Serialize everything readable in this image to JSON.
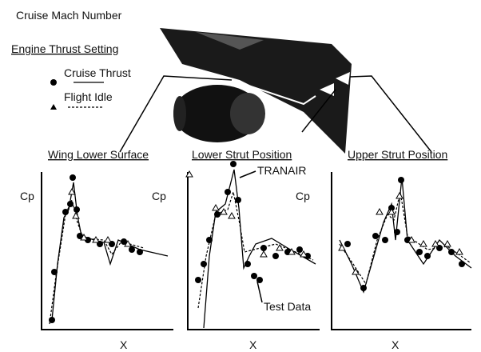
{
  "header": {
    "title": "Cruise Mach Number"
  },
  "legend": {
    "title": "Engine Thrust Setting",
    "items": [
      "Cruise Thrust",
      "Flight Idle"
    ]
  },
  "panels": [
    {
      "title": "Wing Lower Surface",
      "y_label": "Cp",
      "x_label": "X"
    },
    {
      "title": "Lower Strut Position",
      "y_label": "Cp",
      "x_label": "X"
    },
    {
      "title": "Upper Strut Position",
      "y_label": "Cp",
      "x_label": "X"
    }
  ],
  "annotations": [
    "TRANAIR",
    "Test Data"
  ]
}
